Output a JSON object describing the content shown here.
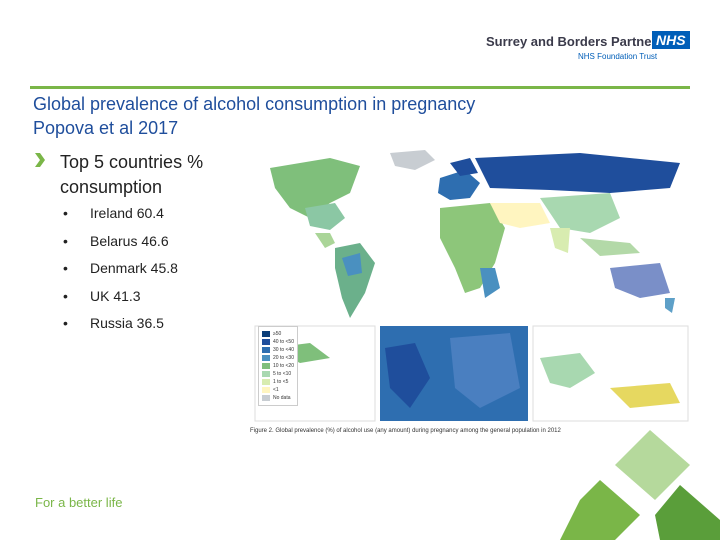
{
  "header": {
    "organisation": "Surrey and Borders Partnership",
    "badge": "NHS",
    "trust": "NHS Foundation Trust"
  },
  "title": [
    "Global prevalence of alcohol consumption in pregnancy",
    "Popova et al 2017"
  ],
  "content": {
    "heading": "Top 5 countries % consumption",
    "bullets": [
      "Ireland 60.4",
      "Belarus 46.6",
      "Denmark 45.8",
      "UK 41.3",
      "Russia 36.5"
    ]
  },
  "map": {
    "legend": [
      "≥50",
      "40 to <50",
      "30 to <40",
      "20 to <30",
      "10 to <20",
      "5 to <10",
      "1 to <5",
      "<1",
      "No data"
    ],
    "caption": "Figure 2. Global prevalence (%) of alcohol use (any amount) during pregnancy among the general population in 2012"
  },
  "footer": "For a better life"
}
